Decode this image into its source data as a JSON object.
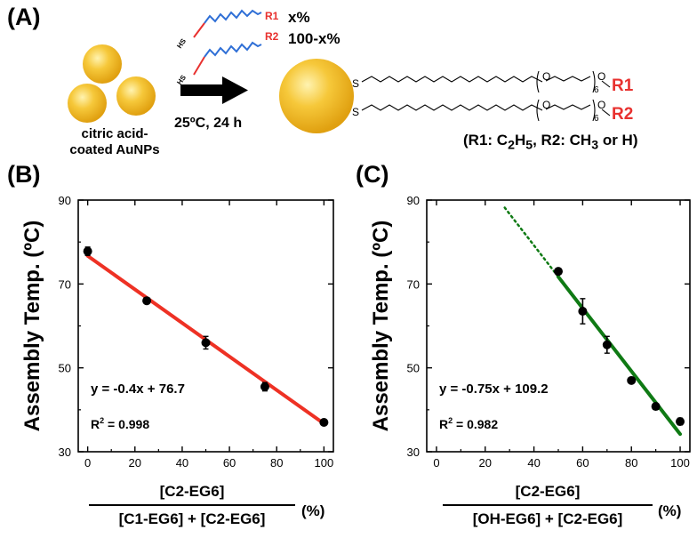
{
  "panel_a": {
    "label": "(A)",
    "ligand_r1": "R1",
    "ligand_r2": "R2",
    "ligand_hs": "HS",
    "ratio_r1": "x%",
    "ratio_r2": "100-x%",
    "start_material_line1": "citric acid-",
    "start_material_line2": "coated AuNPs",
    "condition": "25ºC, 24 h",
    "chain_s": "S",
    "chain_o": "O",
    "chain_rep": "6",
    "product_r1": "R1",
    "product_r2": "R2",
    "legend_prefix": "(R1: C",
    "legend_sub1": "2",
    "legend_mid1": "H",
    "legend_sub2": "5",
    "legend_mid2": ", R2: CH",
    "legend_sub3": "3",
    "legend_suffix": " or H)",
    "colors": {
      "gold": "#f2b418",
      "red": "#e8312f",
      "blue": "#2f6fd6"
    }
  },
  "chart_data": [
    {
      "type": "scatter",
      "panel_label": "(B)",
      "ylabel": "Assembly Temp. (ºC)",
      "xlabel_numerator": "[C2-EG6]",
      "xlabel_denominator": "[C1-EG6] + [C2-EG6]",
      "xlabel_unit": "(%)",
      "xlim": [
        -4,
        104
      ],
      "ylim": [
        30,
        90
      ],
      "xticks": [
        0,
        20,
        40,
        60,
        80,
        100
      ],
      "yticks": [
        30,
        50,
        70,
        90
      ],
      "points": [
        {
          "x": 0,
          "y": 77.8,
          "err": 1.0
        },
        {
          "x": 25,
          "y": 66.0,
          "err": 0.7
        },
        {
          "x": 50,
          "y": 56.0,
          "err": 1.5
        },
        {
          "x": 75,
          "y": 45.5,
          "err": 1.0
        },
        {
          "x": 100,
          "y": 37.0,
          "err": 0.6
        }
      ],
      "fit": {
        "slope": -0.4,
        "intercept": 76.7,
        "x_range": [
          0,
          100
        ],
        "color": "#ee3124"
      },
      "equation": "y = -0.4x + 76.7",
      "r2_prefix": "R",
      "r2_sup": "2",
      "r2_value": " = 0.998"
    },
    {
      "type": "scatter",
      "panel_label": "(C)",
      "ylabel": "Assembly Temp. (ºC)",
      "xlabel_numerator": "[C2-EG6]",
      "xlabel_denominator": "[OH-EG6] + [C2-EG6]",
      "xlabel_unit": "(%)",
      "xlim": [
        -4,
        104
      ],
      "ylim": [
        30,
        90
      ],
      "xticks": [
        0,
        20,
        40,
        60,
        80,
        100
      ],
      "yticks": [
        30,
        50,
        70,
        90
      ],
      "points": [
        {
          "x": 50,
          "y": 73.0,
          "err": 0.6
        },
        {
          "x": 60,
          "y": 63.5,
          "err": 3.0
        },
        {
          "x": 70,
          "y": 55.5,
          "err": 2.0
        },
        {
          "x": 80,
          "y": 47.0,
          "err": 0.6
        },
        {
          "x": 90,
          "y": 40.8,
          "err": 0.5
        },
        {
          "x": 100,
          "y": 37.2,
          "err": 0.8
        }
      ],
      "fit": {
        "slope": -0.75,
        "intercept": 109.2,
        "x_range": [
          50,
          100
        ],
        "color": "#0f7a14"
      },
      "extrapolation": {
        "x_range": [
          28,
          50
        ],
        "style": "dotted"
      },
      "equation": "y = -0.75x + 109.2",
      "r2_prefix": "R",
      "r2_sup": "2",
      "r2_value": " = 0.982"
    }
  ]
}
